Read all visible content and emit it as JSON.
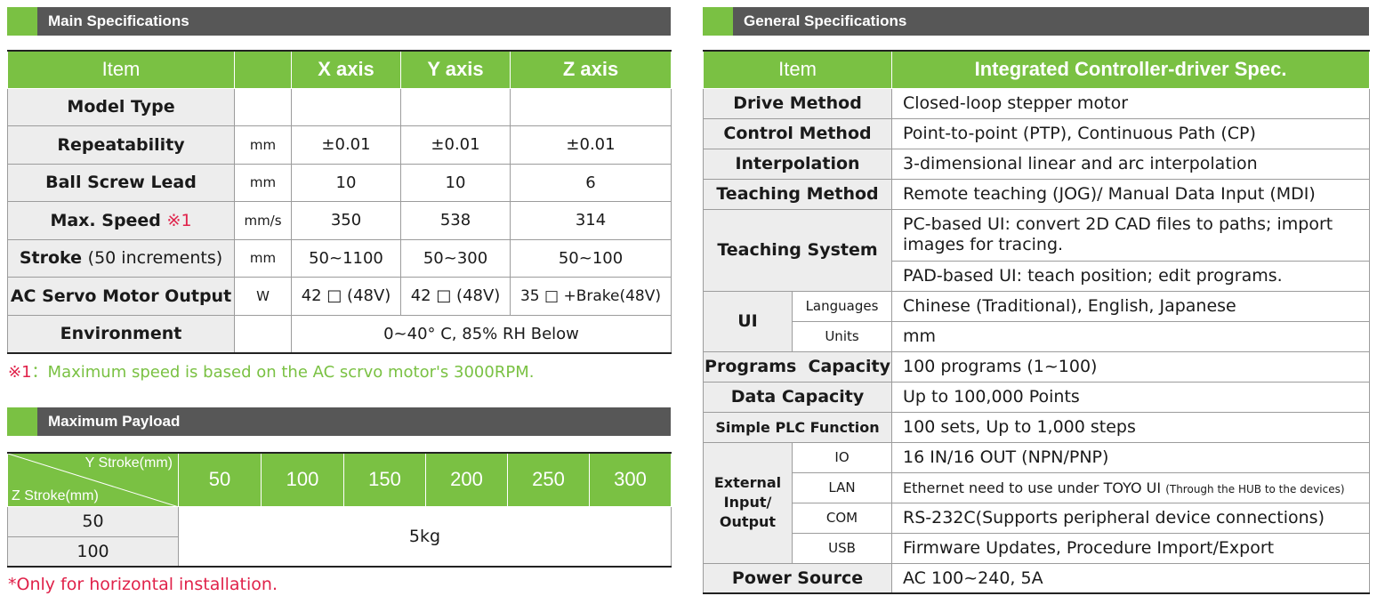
{
  "main_section": {
    "title": "Main Specifications",
    "headers": {
      "item": "Item",
      "x": "X axis",
      "y": "Y axis",
      "z": "Z axis"
    },
    "rows": [
      {
        "item": "Model Type",
        "unit": "",
        "x": "",
        "y": "",
        "z": ""
      },
      {
        "item": "Repeatability",
        "unit": "mm",
        "x": "±0.01",
        "y": "±0.01",
        "z": "±0.01"
      },
      {
        "item": "Ball Screw Lead",
        "unit": "mm",
        "x": "10",
        "y": "10",
        "z": "6"
      },
      {
        "item": "Max. Speed",
        "item_mark": "※1",
        "unit": "mm/s",
        "x": "350",
        "y": "538",
        "z": "314"
      },
      {
        "item": "Stroke",
        "item_sub": "(50 increments)",
        "unit": "mm",
        "x": "50~1100",
        "y": "50~300",
        "z": "50~100"
      },
      {
        "item": "AC Servo Motor Output",
        "unit": "W",
        "x": "42 □ (48V)",
        "y": "42 □ (48V)",
        "z": "35 □ +Brake(48V)"
      },
      {
        "item": "Environment",
        "span_value": "0~40° C, 85% RH Below"
      }
    ],
    "note_mark": "※1",
    "note_text": "：Maximum speed is based on the AC scrvo motor's 3000RPM."
  },
  "payload_section": {
    "title": "Maximum Payload",
    "header_top": "Y Stroke(mm)",
    "header_bottom": "Z Stroke(mm)",
    "y_strokes": [
      "50",
      "100",
      "150",
      "200",
      "250",
      "300"
    ],
    "z_strokes": [
      "50",
      "100"
    ],
    "value": "5kg",
    "note": "*Only for horizontal installation."
  },
  "general_section": {
    "title": "General Specifications",
    "headers": {
      "item": "Item",
      "spec": "Integrated Controller-driver Spec."
    },
    "drive_method": {
      "item": "Drive Method",
      "value": "Closed-loop stepper motor"
    },
    "control_method": {
      "item": "Control Method",
      "value": "Point-to-point (PTP), Continuous Path (CP)"
    },
    "interpolation": {
      "item": "Interpolation",
      "value": "3-dimensional linear and arc interpolation"
    },
    "teaching_method": {
      "item": "Teaching Method",
      "value": "Remote teaching (JOG)/ Manual Data Input (MDI)"
    },
    "teaching_system": {
      "item": "Teaching System",
      "value1": "PC-based UI: convert 2D CAD files to paths; import images for tracing.",
      "value2": "PAD-based UI: teach position; edit programs."
    },
    "ui": {
      "item": "UI",
      "languages_label": "Languages",
      "languages_value": "Chinese (Traditional), English, Japanese",
      "units_label": "Units",
      "units_value": "mm"
    },
    "programs_capacity": {
      "item": "Programs  Capacity",
      "value": "100 programs (1~100)"
    },
    "data_capacity": {
      "item": "Data Capacity",
      "value": "Up to 100,000 Points"
    },
    "simple_plc": {
      "item": "Simple PLC Function",
      "value": "100 sets, Up to 1,000 steps"
    },
    "external_io": {
      "item": "External Input/ Output",
      "io_label": "IO",
      "io_value": "16 IN/16 OUT (NPN/PNP)",
      "lan_label": "LAN",
      "lan_value": "Ethernet need to use under TOYO UI",
      "lan_note": "(Through the HUB to the devices)",
      "com_label": "COM",
      "com_value": "RS-232C(Supports peripheral device connections)",
      "usb_label": "USB",
      "usb_value": "Firmware Updates, Procedure Import/Export"
    },
    "power_source": {
      "item": "Power Source",
      "value": "AC 100~240, 5A"
    }
  },
  "colors": {
    "accent_green": "#7ac143",
    "header_gray": "#575757",
    "item_bg": "#ededed",
    "note_red": "#e0224a"
  }
}
